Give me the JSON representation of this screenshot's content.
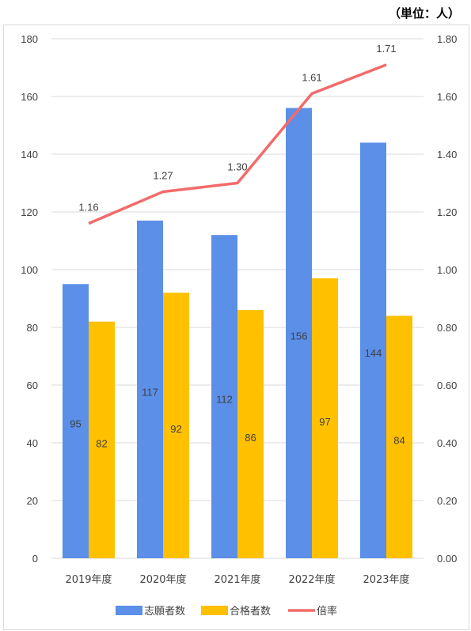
{
  "unit_note": "（単位：人）",
  "chart_data": {
    "type": "bar",
    "categories": [
      "2019年度",
      "2020年度",
      "2021年度",
      "2022年度",
      "2023年度"
    ],
    "series": [
      {
        "name": "志願者数",
        "type": "bar",
        "axis": "left",
        "color": "#5B8FE8",
        "values": [
          95,
          117,
          112,
          156,
          144
        ]
      },
      {
        "name": "合格者数",
        "type": "bar",
        "axis": "left",
        "color": "#FFC000",
        "values": [
          82,
          92,
          86,
          97,
          84
        ]
      },
      {
        "name": "倍率",
        "type": "line",
        "axis": "right",
        "color": "#F26B6B",
        "values": [
          1.16,
          1.27,
          1.3,
          1.61,
          1.71
        ]
      }
    ],
    "y_left": {
      "min": 0,
      "max": 180,
      "step": 20
    },
    "y_right": {
      "min": 0,
      "max": 1.8,
      "step": 0.2,
      "decimals": 2
    },
    "grid": true,
    "legend": "bottom"
  }
}
